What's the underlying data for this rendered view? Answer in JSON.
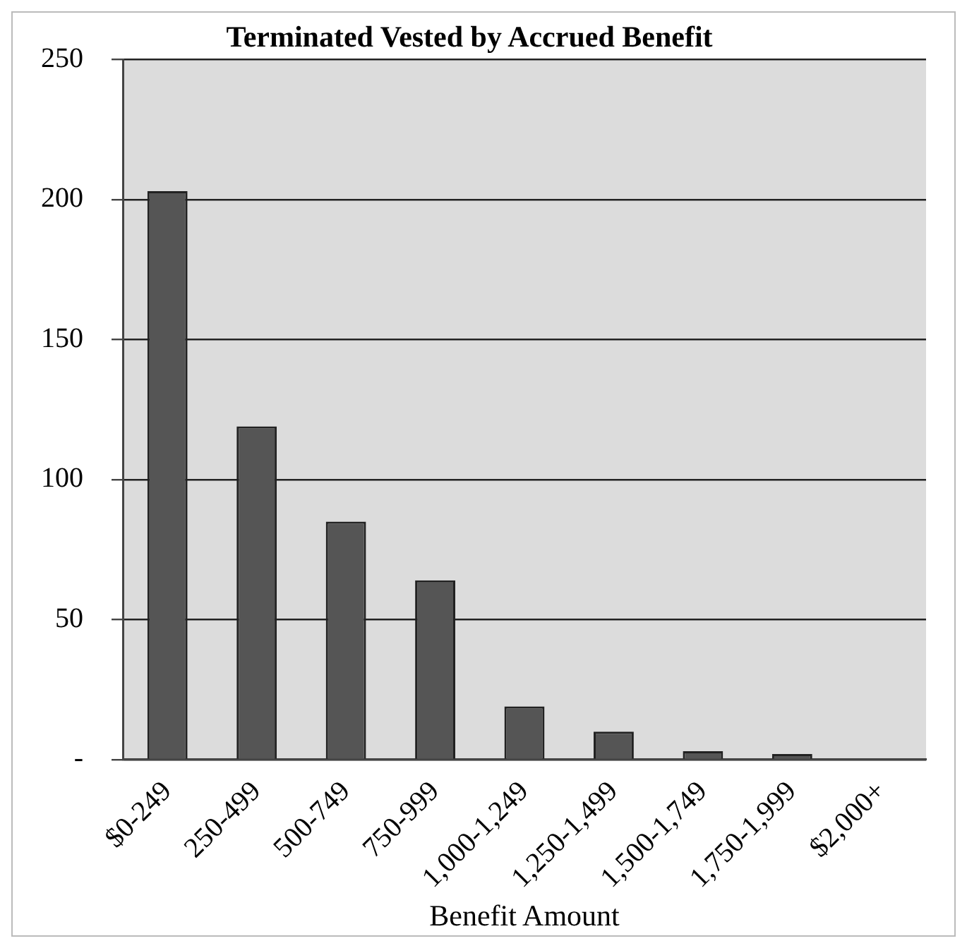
{
  "chart_data": {
    "type": "bar",
    "title": "Terminated Vested by Accrued Benefit",
    "xlabel": "Benefit Amount",
    "categories": [
      "$0-249",
      "250-499",
      "500-749",
      "750-999",
      "1,000-1,249",
      "1,250-1,499",
      "1,500-1,749",
      "1,750-1,999",
      "$2,000+"
    ],
    "values": [
      203,
      119,
      85,
      64,
      19,
      10,
      3,
      2,
      0
    ],
    "color": "#555555",
    "ylim": [
      0,
      250
    ],
    "yticks": [
      {
        "value": 0,
        "label": "-"
      },
      50,
      100,
      150,
      200,
      250
    ],
    "grid": "y",
    "legend": false
  }
}
